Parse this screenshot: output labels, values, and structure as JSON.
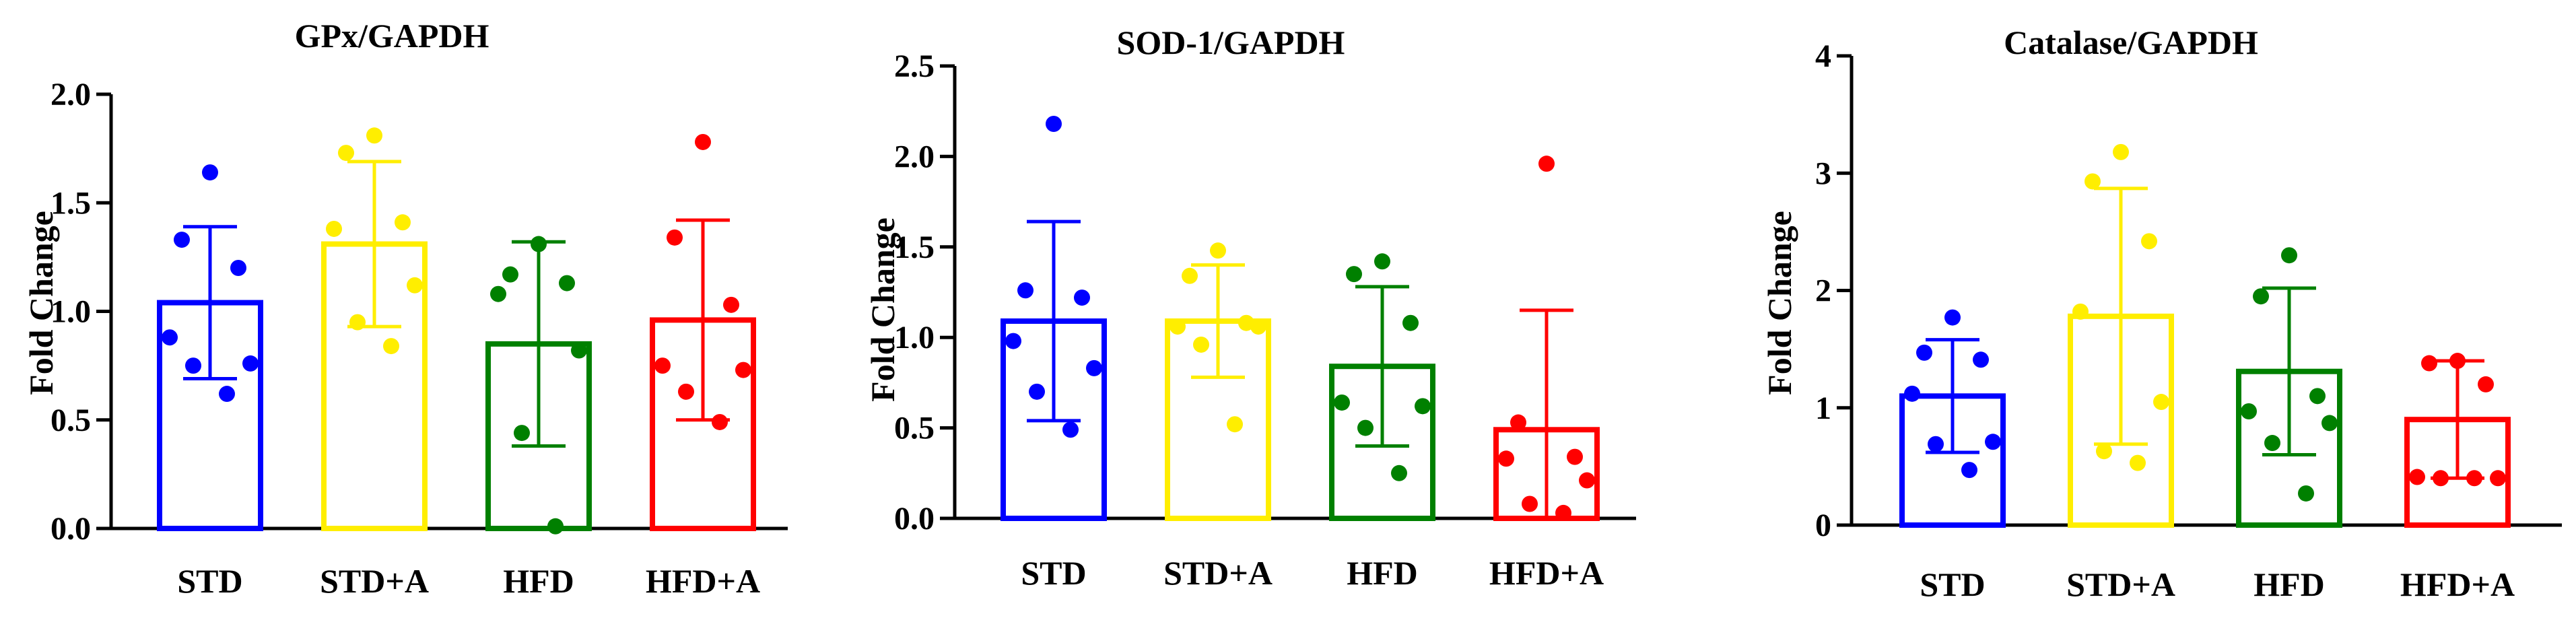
{
  "colors": {
    "STD": "#0000ff",
    "STD+A": "#ffee00",
    "HFD": "#008000",
    "HFD+A": "#ff0000"
  },
  "chart_data": [
    {
      "type": "bar",
      "title": "GPx/GAPDH",
      "ylabel": "Fold Change",
      "xlabel": "",
      "ylim": [
        0,
        2.0
      ],
      "yticks": [
        "0.0",
        "0.5",
        "1.0",
        "1.5",
        "2.0"
      ],
      "categories": [
        "STD",
        "STD+A",
        "HFD",
        "HFD+A"
      ],
      "values": [
        1.04,
        1.31,
        0.85,
        0.96
      ],
      "error": [
        0.35,
        0.38,
        0.47,
        0.46
      ],
      "points": [
        [
          1.64,
          1.33,
          1.2,
          0.88,
          0.76,
          0.75,
          0.62
        ],
        [
          1.81,
          1.73,
          1.41,
          1.38,
          1.12,
          0.95,
          0.84
        ],
        [
          1.31,
          1.17,
          1.13,
          1.08,
          0.82,
          0.44,
          0.01
        ],
        [
          1.78,
          1.34,
          1.03,
          0.75,
          0.73,
          0.63,
          0.49
        ]
      ]
    },
    {
      "type": "bar",
      "title": "SOD-1/GAPDH",
      "ylabel": "Fold Change",
      "xlabel": "",
      "ylim": [
        0,
        2.5
      ],
      "yticks": [
        "0.0",
        "0.5",
        "1.0",
        "1.5",
        "2.0",
        "2.5"
      ],
      "categories": [
        "STD",
        "STD+A",
        "HFD",
        "HFD+A"
      ],
      "values": [
        1.09,
        1.09,
        0.84,
        0.49
      ],
      "error": [
        0.55,
        0.31,
        0.44,
        0.66
      ],
      "points": [
        [
          2.18,
          1.26,
          1.22,
          0.98,
          0.83,
          0.7,
          0.49
        ],
        [
          1.48,
          1.34,
          1.08,
          1.06,
          1.06,
          0.96,
          0.52
        ],
        [
          1.42,
          1.35,
          1.08,
          0.64,
          0.62,
          0.5,
          0.25
        ],
        [
          1.96,
          0.53,
          0.34,
          0.33,
          0.21,
          0.08,
          0.03
        ]
      ]
    },
    {
      "type": "bar",
      "title": "Catalase/GAPDH",
      "ylabel": "Fold Change",
      "xlabel": "",
      "ylim": [
        0,
        4
      ],
      "yticks": [
        "0",
        "1",
        "2",
        "3",
        "4"
      ],
      "categories": [
        "STD",
        "STD+A",
        "HFD",
        "HFD+A"
      ],
      "values": [
        1.1,
        1.78,
        1.31,
        0.9
      ],
      "error": [
        0.48,
        1.09,
        0.71,
        0.5
      ],
      "points": [
        [
          1.77,
          1.47,
          1.41,
          1.12,
          0.71,
          0.69,
          0.47
        ],
        [
          3.18,
          2.93,
          2.42,
          1.82,
          1.05,
          0.63,
          0.53
        ],
        [
          2.3,
          1.95,
          1.1,
          0.97,
          0.87,
          0.7,
          0.27
        ],
        [
          1.4,
          1.38,
          1.2,
          0.41,
          0.4,
          0.4,
          0.4
        ]
      ]
    }
  ]
}
